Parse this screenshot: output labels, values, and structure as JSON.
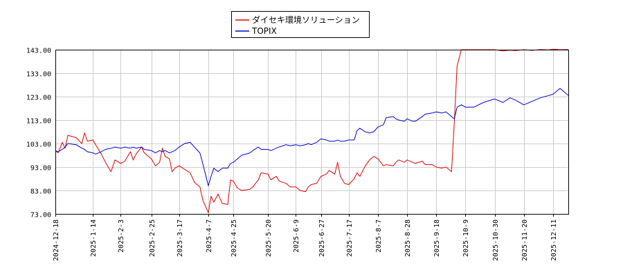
{
  "chart_data": {
    "type": "line",
    "title": "",
    "xlabel": "",
    "ylabel": "",
    "ylim": [
      73,
      145
    ],
    "yticks": [
      "143.00",
      "133.00",
      "123.00",
      "113.00",
      "103.00",
      "93.00",
      "83.00",
      "73.00"
    ],
    "ytick_values": [
      143,
      133,
      123,
      113,
      103,
      93,
      83,
      73
    ],
    "xlim": [
      "2024-12-18",
      "2025-12-22"
    ],
    "xticks": [
      "2024-12-18",
      "2025-1-14",
      "2025-2-3",
      "2025-2-25",
      "2025-3-17",
      "2025-4-7",
      "2025-4-25",
      "2025-5-20",
      "2025-6-9",
      "2025-6-27",
      "2025-7-17",
      "2025-8-7",
      "2025-8-28",
      "2025-9-18",
      "2025-10-9",
      "2025-10-30",
      "2025-11-20",
      "2025-12-11"
    ],
    "grid": true,
    "legend_position": "top-center",
    "series": [
      {
        "name": "ダイセキ環境ソリューション",
        "color": "#dd0000",
        "points": [
          [
            "2024-12-18",
            100.0
          ],
          [
            "2024-12-20",
            99.0
          ],
          [
            "2024-12-23",
            103.5
          ],
          [
            "2024-12-25",
            101.0
          ],
          [
            "2024-12-27",
            106.5
          ],
          [
            "2025-1-2",
            105.5
          ],
          [
            "2025-1-6",
            103.0
          ],
          [
            "2025-1-8",
            107.5
          ],
          [
            "2025-1-10",
            104.0
          ],
          [
            "2025-1-14",
            104.5
          ],
          [
            "2025-1-16",
            102.5
          ],
          [
            "2025-1-20",
            98.5
          ],
          [
            "2025-1-23",
            95.0
          ],
          [
            "2025-1-27",
            91.0
          ],
          [
            "2025-1-30",
            96.0
          ],
          [
            "2025-2-3",
            94.5
          ],
          [
            "2025-2-6",
            95.5
          ],
          [
            "2025-2-10",
            99.5
          ],
          [
            "2025-2-12",
            96.0
          ],
          [
            "2025-2-14",
            98.5
          ],
          [
            "2025-2-18",
            101.5
          ],
          [
            "2025-2-20",
            99.0
          ],
          [
            "2025-2-25",
            96.5
          ],
          [
            "2025-2-28",
            93.5
          ],
          [
            "2025-3-3",
            95.0
          ],
          [
            "2025-3-5",
            101.0
          ],
          [
            "2025-3-7",
            97.5
          ],
          [
            "2025-3-10",
            96.5
          ],
          [
            "2025-3-12",
            91.0
          ],
          [
            "2025-3-14",
            92.5
          ],
          [
            "2025-3-17",
            93.5
          ],
          [
            "2025-3-21",
            92.0
          ],
          [
            "2025-3-25",
            90.5
          ],
          [
            "2025-3-28",
            86.5
          ],
          [
            "2025-4-1",
            84.5
          ],
          [
            "2025-4-3",
            79.0
          ],
          [
            "2025-4-7",
            73.5
          ],
          [
            "2025-4-9",
            80.5
          ],
          [
            "2025-4-11",
            78.0
          ],
          [
            "2025-4-14",
            81.5
          ],
          [
            "2025-4-17",
            77.5
          ],
          [
            "2025-4-21",
            77.0
          ],
          [
            "2025-4-23",
            87.5
          ],
          [
            "2025-4-25",
            87.0
          ],
          [
            "2025-4-28",
            84.0
          ],
          [
            "2025-5-1",
            83.0
          ],
          [
            "2025-5-7",
            83.5
          ],
          [
            "2025-5-9",
            84.5
          ],
          [
            "2025-5-13",
            87.5
          ],
          [
            "2025-5-15",
            90.5
          ],
          [
            "2025-5-20",
            90.0
          ],
          [
            "2025-5-22",
            87.5
          ],
          [
            "2025-5-26",
            89.0
          ],
          [
            "2025-5-28",
            87.0
          ],
          [
            "2025-6-2",
            86.0
          ],
          [
            "2025-6-5",
            84.5
          ],
          [
            "2025-6-9",
            84.5
          ],
          [
            "2025-6-12",
            83.0
          ],
          [
            "2025-6-16",
            82.5
          ],
          [
            "2025-6-18",
            84.5
          ],
          [
            "2025-6-20",
            85.5
          ],
          [
            "2025-6-24",
            86.0
          ],
          [
            "2025-6-27",
            89.0
          ],
          [
            "2025-7-1",
            90.0
          ],
          [
            "2025-7-3",
            91.5
          ],
          [
            "2025-7-7",
            90.0
          ],
          [
            "2025-7-9",
            95.0
          ],
          [
            "2025-7-11",
            89.0
          ],
          [
            "2025-7-14",
            86.0
          ],
          [
            "2025-7-17",
            85.5
          ],
          [
            "2025-7-21",
            88.0
          ],
          [
            "2025-7-23",
            90.5
          ],
          [
            "2025-7-25",
            89.0
          ],
          [
            "2025-7-29",
            93.5
          ],
          [
            "2025-8-1",
            96.0
          ],
          [
            "2025-8-4",
            97.5
          ],
          [
            "2025-8-7",
            96.5
          ],
          [
            "2025-8-11",
            93.5
          ],
          [
            "2025-8-13",
            94.0
          ],
          [
            "2025-8-18",
            93.5
          ],
          [
            "2025-8-20",
            95.0
          ],
          [
            "2025-8-22",
            96.0
          ],
          [
            "2025-8-26",
            95.0
          ],
          [
            "2025-8-28",
            96.0
          ],
          [
            "2025-9-1",
            95.0
          ],
          [
            "2025-9-3",
            94.5
          ],
          [
            "2025-9-8",
            95.5
          ],
          [
            "2025-9-10",
            94.0
          ],
          [
            "2025-9-15",
            94.0
          ],
          [
            "2025-9-18",
            93.0
          ],
          [
            "2025-9-22",
            92.5
          ],
          [
            "2025-9-25",
            93.0
          ],
          [
            "2025-9-29",
            91.0
          ],
          [
            "2025-10-1",
            112.0
          ],
          [
            "2025-10-3",
            136.0
          ],
          [
            "2025-10-6",
            143.0
          ],
          [
            "2025-10-9",
            143.0
          ],
          [
            "2025-10-15",
            143.0
          ],
          [
            "2025-10-22",
            143.0
          ],
          [
            "2025-10-30",
            143.0
          ],
          [
            "2025-11-5",
            142.5
          ],
          [
            "2025-11-10",
            142.8
          ],
          [
            "2025-11-14",
            142.6
          ],
          [
            "2025-11-20",
            143.0
          ],
          [
            "2025-11-26",
            142.7
          ],
          [
            "2025-12-2",
            143.1
          ],
          [
            "2025-12-8",
            142.9
          ],
          [
            "2025-12-11",
            143.2
          ],
          [
            "2025-12-16",
            143.0
          ],
          [
            "2025-12-22",
            143.1
          ]
        ]
      },
      {
        "name": "TOPIX",
        "color": "#0000cc",
        "points": [
          [
            "2024-12-18",
            100.0
          ],
          [
            "2024-12-20",
            99.5
          ],
          [
            "2024-12-23",
            100.5
          ],
          [
            "2024-12-25",
            101.5
          ],
          [
            "2024-12-27",
            103.0
          ],
          [
            "2025-1-2",
            102.5
          ],
          [
            "2025-1-6",
            101.0
          ],
          [
            "2025-1-8",
            100.5
          ],
          [
            "2025-1-10",
            99.5
          ],
          [
            "2025-1-14",
            99.0
          ],
          [
            "2025-1-16",
            98.5
          ],
          [
            "2025-1-20",
            99.5
          ],
          [
            "2025-1-23",
            100.5
          ],
          [
            "2025-1-27",
            101.0
          ],
          [
            "2025-1-30",
            101.5
          ],
          [
            "2025-2-3",
            101.0
          ],
          [
            "2025-2-6",
            101.5
          ],
          [
            "2025-2-10",
            101.0
          ],
          [
            "2025-2-12",
            101.5
          ],
          [
            "2025-2-14",
            101.0
          ],
          [
            "2025-2-18",
            101.5
          ],
          [
            "2025-2-20",
            100.5
          ],
          [
            "2025-2-25",
            100.0
          ],
          [
            "2025-2-28",
            99.0
          ],
          [
            "2025-3-3",
            100.0
          ],
          [
            "2025-3-5",
            99.5
          ],
          [
            "2025-3-7",
            100.0
          ],
          [
            "2025-3-10",
            99.0
          ],
          [
            "2025-3-12",
            99.5
          ],
          [
            "2025-3-14",
            100.0
          ],
          [
            "2025-3-17",
            101.5
          ],
          [
            "2025-3-21",
            103.0
          ],
          [
            "2025-3-25",
            103.5
          ],
          [
            "2025-3-28",
            101.5
          ],
          [
            "2025-4-1",
            99.0
          ],
          [
            "2025-4-3",
            94.5
          ],
          [
            "2025-4-7",
            85.0
          ],
          [
            "2025-4-9",
            89.0
          ],
          [
            "2025-4-11",
            92.5
          ],
          [
            "2025-4-14",
            91.0
          ],
          [
            "2025-4-17",
            92.5
          ],
          [
            "2025-4-21",
            92.5
          ],
          [
            "2025-4-23",
            94.5
          ],
          [
            "2025-4-25",
            95.0
          ],
          [
            "2025-4-28",
            96.5
          ],
          [
            "2025-5-1",
            98.0
          ],
          [
            "2025-5-7",
            99.0
          ],
          [
            "2025-5-9",
            100.0
          ],
          [
            "2025-5-13",
            101.5
          ],
          [
            "2025-5-15",
            100.5
          ],
          [
            "2025-5-20",
            100.5
          ],
          [
            "2025-5-22",
            100.0
          ],
          [
            "2025-5-26",
            101.0
          ],
          [
            "2025-5-28",
            101.5
          ],
          [
            "2025-6-2",
            102.5
          ],
          [
            "2025-6-5",
            102.0
          ],
          [
            "2025-6-9",
            102.5
          ],
          [
            "2025-6-12",
            102.0
          ],
          [
            "2025-6-16",
            102.5
          ],
          [
            "2025-6-18",
            103.0
          ],
          [
            "2025-6-20",
            102.5
          ],
          [
            "2025-6-24",
            103.5
          ],
          [
            "2025-6-27",
            105.0
          ],
          [
            "2025-7-1",
            104.5
          ],
          [
            "2025-7-3",
            104.0
          ],
          [
            "2025-7-7",
            104.0
          ],
          [
            "2025-7-9",
            104.5
          ],
          [
            "2025-7-11",
            104.0
          ],
          [
            "2025-7-14",
            104.0
          ],
          [
            "2025-7-17",
            104.5
          ],
          [
            "2025-7-21",
            104.5
          ],
          [
            "2025-7-23",
            108.5
          ],
          [
            "2025-7-25",
            109.5
          ],
          [
            "2025-7-29",
            108.0
          ],
          [
            "2025-8-1",
            107.5
          ],
          [
            "2025-8-4",
            108.0
          ],
          [
            "2025-8-7",
            110.0
          ],
          [
            "2025-8-11",
            111.0
          ],
          [
            "2025-8-13",
            114.0
          ],
          [
            "2025-8-18",
            114.5
          ],
          [
            "2025-8-20",
            113.5
          ],
          [
            "2025-8-22",
            113.0
          ],
          [
            "2025-8-26",
            112.5
          ],
          [
            "2025-8-28",
            113.5
          ],
          [
            "2025-9-1",
            112.5
          ],
          [
            "2025-9-3",
            112.5
          ],
          [
            "2025-9-8",
            114.5
          ],
          [
            "2025-9-10",
            115.5
          ],
          [
            "2025-9-15",
            116.0
          ],
          [
            "2025-9-18",
            116.5
          ],
          [
            "2025-9-22",
            116.0
          ],
          [
            "2025-9-25",
            116.5
          ],
          [
            "2025-9-29",
            114.5
          ],
          [
            "2025-10-1",
            113.5
          ],
          [
            "2025-10-3",
            118.5
          ],
          [
            "2025-10-6",
            119.5
          ],
          [
            "2025-10-9",
            118.5
          ],
          [
            "2025-10-15",
            118.5
          ],
          [
            "2025-10-22",
            120.5
          ],
          [
            "2025-10-30",
            122.0
          ],
          [
            "2025-11-5",
            120.5
          ],
          [
            "2025-11-10",
            122.5
          ],
          [
            "2025-11-14",
            121.5
          ],
          [
            "2025-11-20",
            119.5
          ],
          [
            "2025-11-26",
            121.0
          ],
          [
            "2025-12-2",
            122.5
          ],
          [
            "2025-12-8",
            123.5
          ],
          [
            "2025-12-11",
            124.0
          ],
          [
            "2025-12-16",
            126.5
          ],
          [
            "2025-12-22",
            123.5
          ]
        ]
      }
    ]
  }
}
